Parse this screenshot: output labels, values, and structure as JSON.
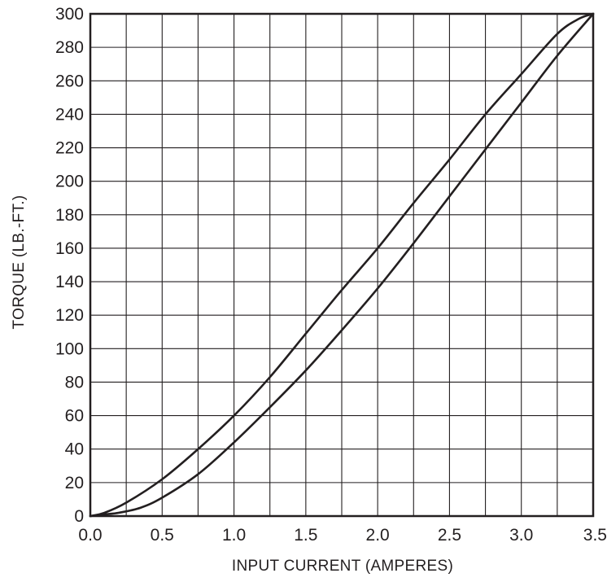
{
  "chart_data": {
    "type": "line",
    "xlabel": "INPUT CURRENT  (AMPERES)",
    "ylabel": "TORQUE   (LB.-FT.)",
    "xlim": [
      0.0,
      3.5
    ],
    "ylim": [
      0,
      300
    ],
    "x_ticks": [
      "0.0",
      "0.5",
      "1.0",
      "1.5",
      "2.0",
      "2.5",
      "3.0",
      "3.5"
    ],
    "y_ticks": [
      "0",
      "20",
      "40",
      "60",
      "80",
      "100",
      "120",
      "140",
      "160",
      "180",
      "200",
      "220",
      "240",
      "260",
      "280",
      "300"
    ],
    "grid": true,
    "legend": false,
    "line_color": "#231f20",
    "series": [
      {
        "x": [
          0.0,
          0.1,
          0.25,
          0.5,
          0.75,
          1.0,
          1.25,
          1.5,
          1.75,
          2.0,
          2.25,
          2.5,
          2.75,
          3.0,
          3.25,
          3.4,
          3.5
        ],
        "y": [
          0,
          2,
          8,
          22,
          40,
          60,
          83,
          109,
          135,
          160,
          187,
          213,
          240,
          264,
          288,
          297,
          300
        ]
      },
      {
        "x": [
          0.0,
          0.1,
          0.2,
          0.35,
          0.5,
          0.75,
          1.0,
          1.25,
          1.5,
          1.75,
          2.0,
          2.25,
          2.5,
          2.75,
          3.0,
          3.25,
          3.5
        ],
        "y": [
          0,
          1,
          2,
          5,
          11,
          25,
          44,
          65,
          87,
          111,
          136,
          163,
          191,
          219,
          247,
          275,
          300
        ]
      }
    ]
  }
}
